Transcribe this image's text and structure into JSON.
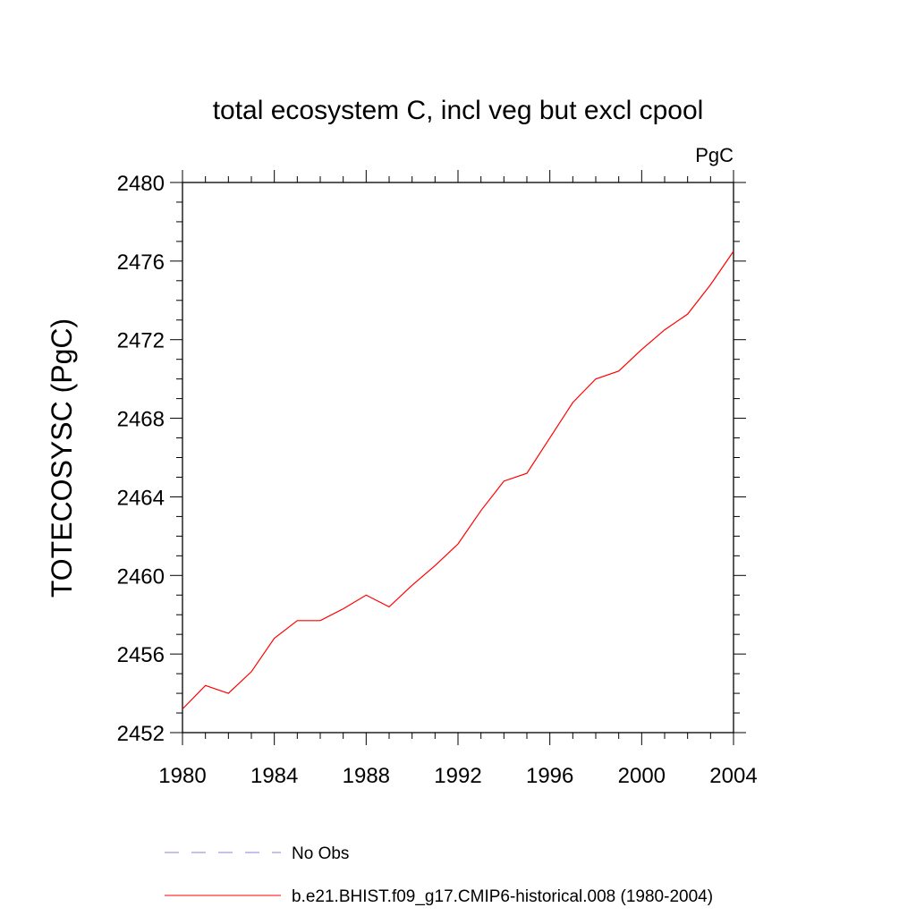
{
  "chart_data": {
    "type": "line",
    "title": "total ecosystem C, incl veg but excl cpool",
    "units_label": "PgC",
    "xlabel": "",
    "ylabel": "TOTECOSYSC  (PgC)",
    "xlim": [
      1980,
      2004
    ],
    "ylim": [
      2452,
      2480
    ],
    "x_ticks": [
      "1980",
      "1984",
      "1988",
      "1992",
      "1996",
      "2000",
      "2004"
    ],
    "y_ticks": [
      "2452",
      "2456",
      "2460",
      "2464",
      "2468",
      "2472",
      "2476",
      "2480"
    ],
    "grid": false,
    "legend_position": "bottom",
    "series": [
      {
        "name": "b.e21.BHIST.f09_g17.CMIP6-historical.008 (1980-2004)",
        "color": "#ff0000",
        "style": "solid",
        "x": [
          1980,
          1981,
          1982,
          1983,
          1984,
          1985,
          1986,
          1987,
          1988,
          1989,
          1990,
          1991,
          1992,
          1993,
          1994,
          1995,
          1996,
          1997,
          1998,
          1999,
          2000,
          2001,
          2002,
          2003,
          2004
        ],
        "y": [
          2453.2,
          2454.4,
          2454.0,
          2455.1,
          2456.8,
          2457.7,
          2457.7,
          2458.3,
          2459.0,
          2458.4,
          2459.5,
          2460.5,
          2461.6,
          2463.3,
          2464.8,
          2465.2,
          2467.0,
          2468.8,
          2470.0,
          2470.4,
          2471.5,
          2472.5,
          2473.3,
          2474.8,
          2476.5
        ]
      },
      {
        "name": "No Obs",
        "color": "#8a84d6",
        "style": "dashed",
        "x": [],
        "y": []
      }
    ]
  }
}
